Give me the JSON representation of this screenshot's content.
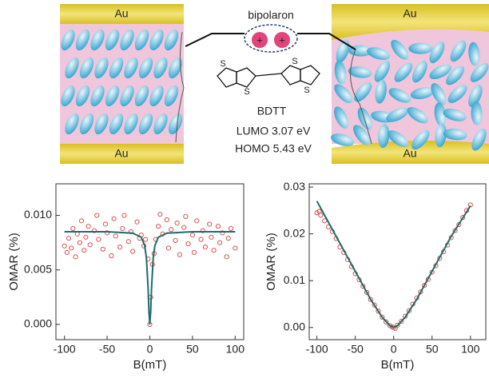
{
  "diagram": {
    "electrodes": [
      "Au",
      "Au",
      "Au",
      "Au"
    ],
    "bipolaron": "bipolaron",
    "charges": [
      "+",
      "+"
    ],
    "sulfur": [
      "S",
      "S",
      "S",
      "S"
    ],
    "molecule": "BDTT",
    "lumo": "LUMO  3.07 eV",
    "homo": "HOMO  5.43 eV"
  },
  "chart_data": [
    {
      "type": "scatter",
      "xlabel": "B(mT)",
      "ylabel": "OMAR (%)",
      "xlim": [
        -110,
        110
      ],
      "ylim": [
        -0.0014,
        0.0129
      ],
      "xticks": [
        -100,
        -50,
        0,
        50,
        100
      ],
      "yticks": [
        {
          "value": 0,
          "label": "0.000"
        },
        {
          "value": 0.005,
          "label": "0.005"
        },
        {
          "value": 0.01,
          "label": "0.010"
        }
      ],
      "series": [
        {
          "type": "scatter",
          "color": "#d9534f",
          "x": [
            -100,
            -97,
            -95,
            -92,
            -90,
            -87,
            -85,
            -82,
            -80,
            -77,
            -75,
            -72,
            -70,
            -65,
            -62,
            -60,
            -55,
            -52,
            -50,
            -45,
            -42,
            -40,
            -35,
            -32,
            -30,
            -25,
            -22,
            -20,
            -15,
            -12,
            -10,
            -7,
            -5,
            -2,
            0,
            1,
            3,
            5,
            7,
            10,
            12,
            15,
            20,
            22,
            25,
            30,
            32,
            35,
            40,
            42,
            45,
            50,
            52,
            55,
            60,
            62,
            65,
            70,
            72,
            75,
            80,
            82,
            85,
            90,
            92,
            95,
            100
          ],
          "values": [
            0.0072,
            0.0066,
            0.0079,
            0.007,
            0.0088,
            0.0062,
            0.0083,
            0.0075,
            0.0095,
            0.0068,
            0.008,
            0.009,
            0.0073,
            0.0086,
            0.01,
            0.0078,
            0.0069,
            0.0092,
            0.0084,
            0.0063,
            0.0097,
            0.0081,
            0.0071,
            0.0088,
            0.01,
            0.0076,
            0.0085,
            0.0067,
            0.0094,
            0.0079,
            0.0082,
            0.0072,
            0.0078,
            0.006,
            0.0,
            0.0025,
            0.0055,
            0.0065,
            0.0078,
            0.009,
            0.0101,
            0.0083,
            0.0096,
            0.007,
            0.0087,
            0.0077,
            0.0093,
            0.0064,
            0.0089,
            0.0099,
            0.0074,
            0.0082,
            0.0066,
            0.0095,
            0.0078,
            0.0086,
            0.0071,
            0.0092,
            0.008,
            0.0068,
            0.009,
            0.0075,
            0.0084,
            0.0062,
            0.0079,
            0.0088,
            0.007
          ]
        },
        {
          "type": "line",
          "color": "#1f6b6b",
          "x": [
            -100,
            -50,
            -20,
            -10,
            -6,
            -4,
            -2,
            -1,
            0,
            1,
            2,
            4,
            6,
            10,
            20,
            50,
            100
          ],
          "values": [
            0.0085,
            0.0085,
            0.00837,
            0.008,
            0.00724,
            0.00611,
            0.00332,
            0.00117,
            0,
            0.00117,
            0.00332,
            0.00611,
            0.00724,
            0.008,
            0.00837,
            0.0085,
            0.0085
          ]
        }
      ]
    },
    {
      "type": "scatter",
      "xlabel": "B(mT)",
      "ylabel": "OMAR (%)",
      "xlim": [
        -110,
        120
      ],
      "ylim": [
        -0.0026,
        0.0307
      ],
      "xticks": [
        -100,
        -50,
        0,
        50,
        100
      ],
      "yticks": [
        {
          "value": 0,
          "label": "0.00"
        },
        {
          "value": 0.01,
          "label": "0.01"
        },
        {
          "value": 0.02,
          "label": "0.02"
        },
        {
          "value": 0.03,
          "label": "0.03"
        }
      ],
      "series": [
        {
          "type": "scatter",
          "color": "#d9534f",
          "x": [
            -100,
            -97,
            -95,
            -90,
            -85,
            -80,
            -75,
            -70,
            -65,
            -60,
            -55,
            -50,
            -45,
            -40,
            -35,
            -30,
            -25,
            -20,
            -15,
            -10,
            -5,
            -2,
            0,
            2,
            5,
            10,
            15,
            20,
            25,
            30,
            35,
            40,
            45,
            50,
            55,
            60,
            65,
            70,
            75,
            80,
            85,
            90,
            95,
            100
          ],
          "values": [
            0.0245,
            0.0248,
            0.024,
            0.0228,
            0.0215,
            0.0205,
            0.019,
            0.0172,
            0.016,
            0.0145,
            0.013,
            0.0115,
            0.0102,
            0.0088,
            0.0075,
            0.006,
            0.0048,
            0.0035,
            0.0022,
            0.0012,
            0.0004,
            0.0001,
            0,
            -0.0002,
            0.0005,
            0.0013,
            0.0024,
            0.0036,
            0.005,
            0.0063,
            0.0076,
            0.009,
            0.0103,
            0.0118,
            0.0132,
            0.0148,
            0.0162,
            0.0176,
            0.0192,
            0.0207,
            0.022,
            0.0235,
            0.025,
            0.0262
          ]
        },
        {
          "type": "line",
          "color": "#1f6b6b",
          "x": [
            -100,
            -75,
            -50,
            -30,
            -15,
            -5,
            0,
            5,
            15,
            30,
            50,
            75,
            100
          ],
          "values": [
            0.027,
            0.0195,
            0.012,
            0.006,
            0.0022,
            0.0004,
            0,
            0.0004,
            0.0022,
            0.006,
            0.012,
            0.0195,
            0.026
          ]
        }
      ]
    }
  ]
}
